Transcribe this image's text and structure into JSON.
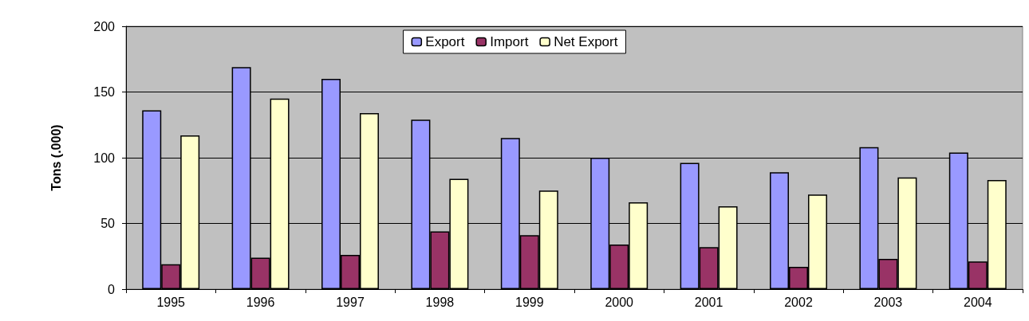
{
  "chart_data": {
    "type": "bar",
    "ylabel": "Tons (.000)",
    "categories": [
      "1995",
      "1996",
      "1997",
      "1998",
      "1999",
      "2000",
      "2001",
      "2002",
      "2003",
      "2004"
    ],
    "series": [
      {
        "name": "Export",
        "color": "#9999ff",
        "values": [
          136,
          169,
          160,
          129,
          115,
          100,
          96,
          89,
          108,
          104
        ]
      },
      {
        "name": "Import",
        "color": "#993366",
        "values": [
          19,
          24,
          26,
          44,
          41,
          34,
          32,
          17,
          23,
          21
        ]
      },
      {
        "name": "Net Export",
        "color": "#ffffcc",
        "values": [
          117,
          145,
          134,
          84,
          75,
          66,
          63,
          72,
          85,
          83
        ]
      }
    ],
    "ylim": [
      0,
      200
    ],
    "yticks": [
      0,
      50,
      100,
      150,
      200
    ],
    "grid": "y",
    "legend": "top"
  }
}
